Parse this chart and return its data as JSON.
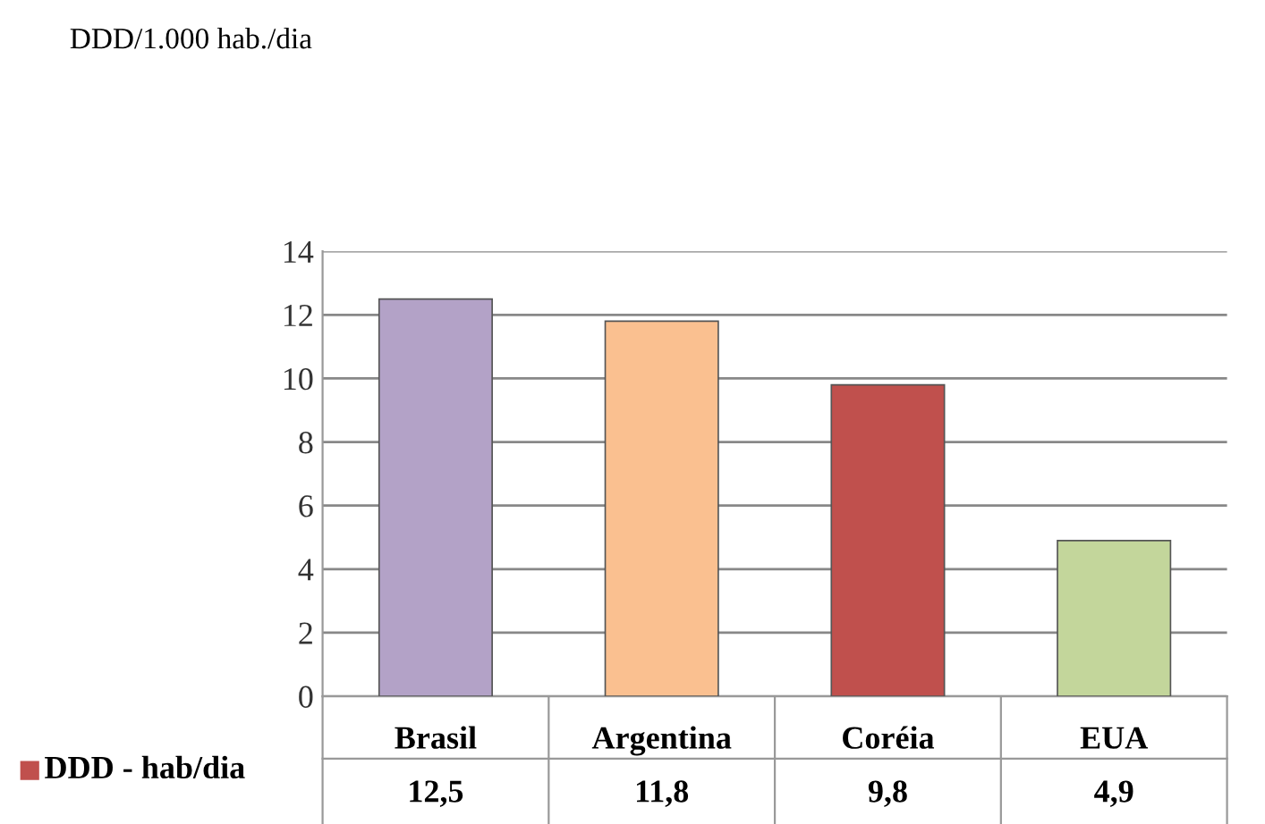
{
  "chart_data": {
    "type": "bar",
    "title": "DDD/1.000 hab./dia",
    "categories": [
      "Brasil",
      "Argentina",
      "Coréia",
      "EUA"
    ],
    "series": [
      {
        "name": "DDD - hab/dia",
        "color": "#c0504d",
        "colors": [
          "#b3a2c7",
          "#fac090",
          "#c0504d",
          "#c3d69b"
        ],
        "values": [
          12.5,
          11.8,
          9.8,
          4.9
        ],
        "value_labels": [
          "12,5",
          "11,8",
          "9,8",
          "4,9"
        ]
      }
    ],
    "ylim": [
      0,
      14
    ],
    "yticks": [
      0,
      2,
      4,
      6,
      8,
      10,
      12,
      14
    ],
    "grid": "y"
  }
}
